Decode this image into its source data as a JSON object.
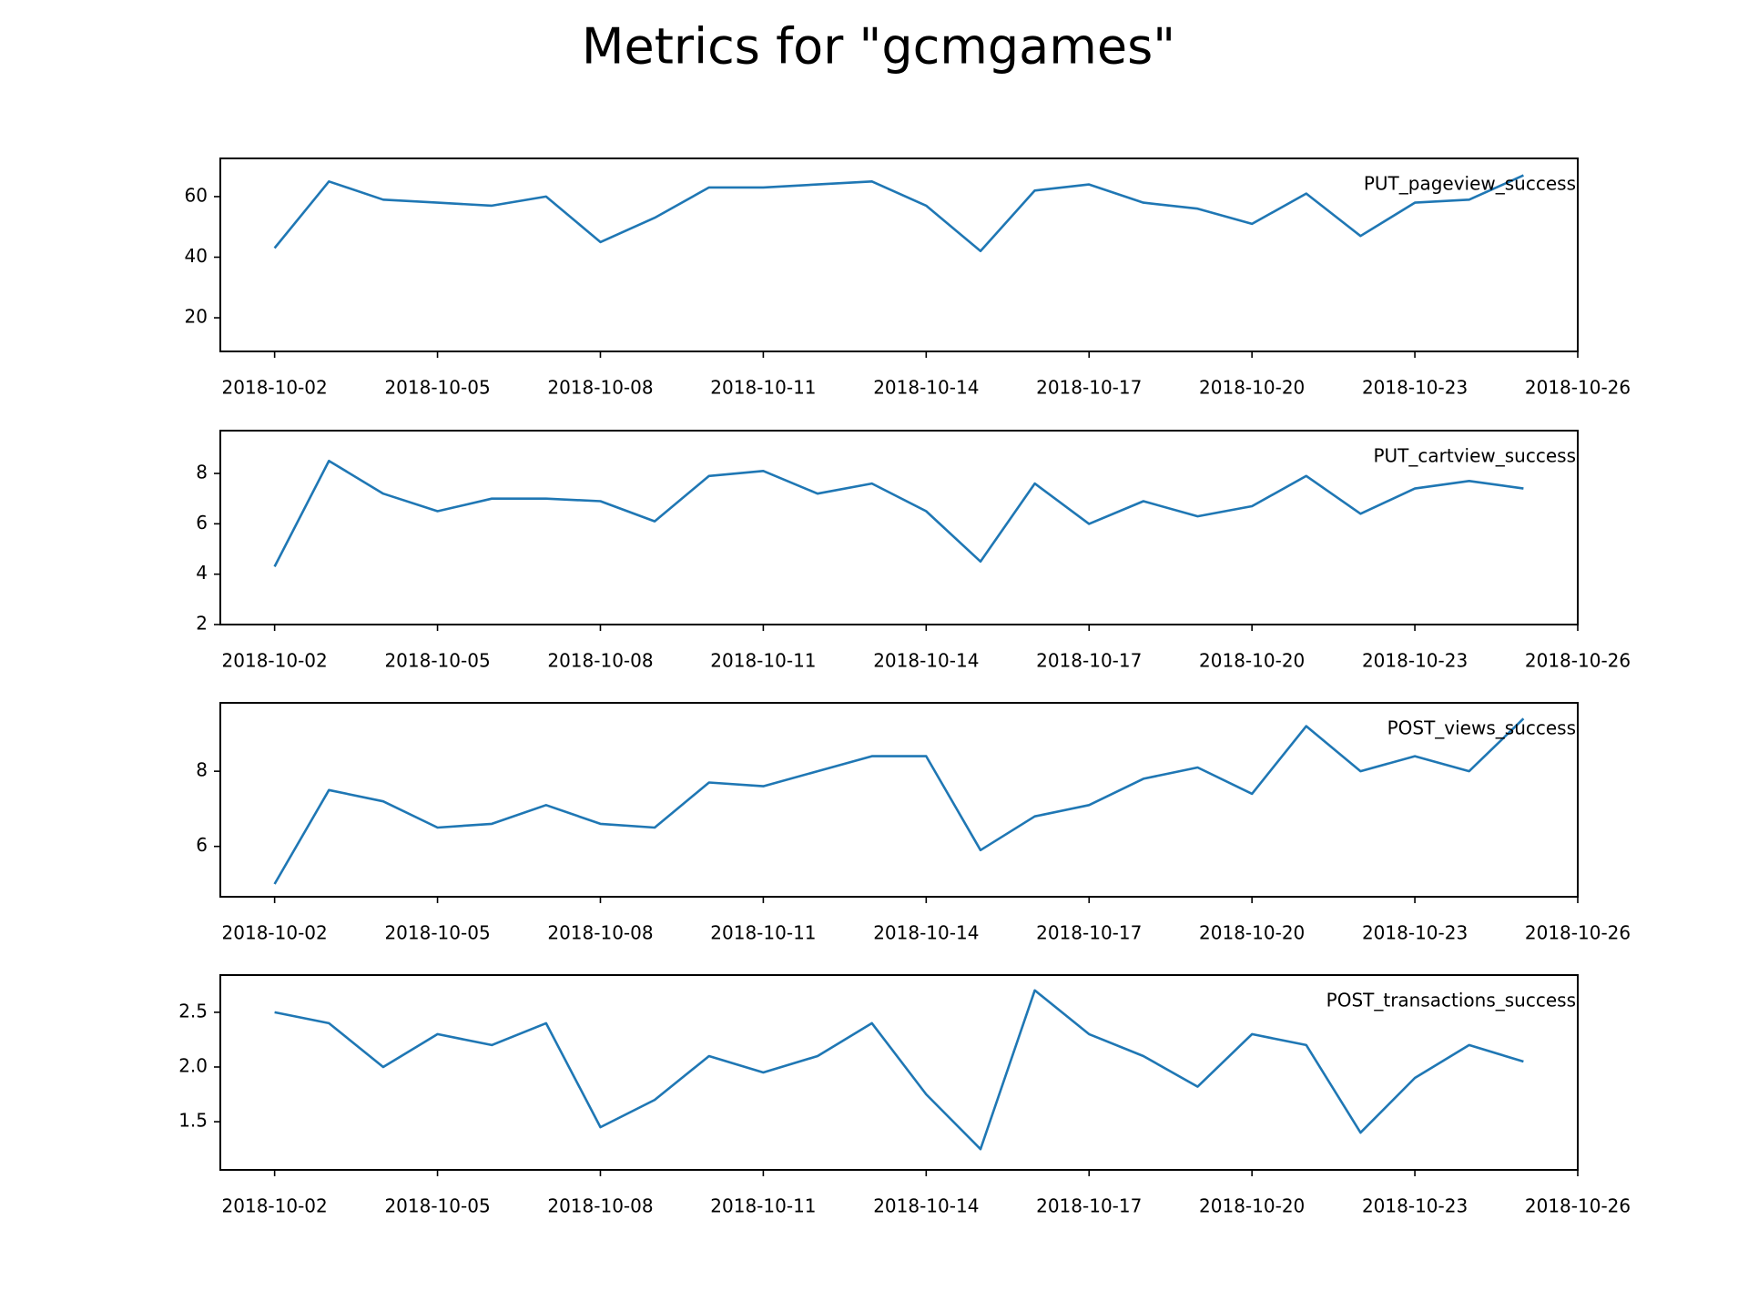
{
  "title": "Metrics for \"gcmgames\"",
  "chart_data": [
    {
      "type": "line",
      "x": [
        "2018-10-02",
        "2018-10-03",
        "2018-10-04",
        "2018-10-05",
        "2018-10-06",
        "2018-10-07",
        "2018-10-08",
        "2018-10-09",
        "2018-10-10",
        "2018-10-11",
        "2018-10-12",
        "2018-10-13",
        "2018-10-14",
        "2018-10-15",
        "2018-10-16",
        "2018-10-17",
        "2018-10-18",
        "2018-10-19",
        "2018-10-20",
        "2018-10-21",
        "2018-10-22",
        "2018-10-23",
        "2018-10-24",
        "2018-10-25"
      ],
      "series": [
        {
          "name": "PUT_pageview_success",
          "color": "#1f77b4",
          "values": [
            43,
            65,
            59,
            58,
            57,
            60,
            45,
            53,
            63,
            63,
            64,
            65,
            57,
            42,
            62,
            64,
            58,
            56,
            51,
            61,
            47,
            58,
            59,
            67
          ]
        }
      ],
      "xlim": [
        "2018-10-01",
        "2018-10-26"
      ],
      "xticks": [
        "2018-10-02",
        "2018-10-05",
        "2018-10-08",
        "2018-10-11",
        "2018-10-14",
        "2018-10-17",
        "2018-10-20",
        "2018-10-23",
        "2018-10-26"
      ],
      "ylim": [
        8.9,
        72.6
      ],
      "yticks": [
        20,
        40,
        60
      ]
    },
    {
      "type": "line",
      "x": [
        "2018-10-02",
        "2018-10-03",
        "2018-10-04",
        "2018-10-05",
        "2018-10-06",
        "2018-10-07",
        "2018-10-08",
        "2018-10-09",
        "2018-10-10",
        "2018-10-11",
        "2018-10-12",
        "2018-10-13",
        "2018-10-14",
        "2018-10-15",
        "2018-10-16",
        "2018-10-17",
        "2018-10-18",
        "2018-10-19",
        "2018-10-20",
        "2018-10-21",
        "2018-10-22",
        "2018-10-23",
        "2018-10-24",
        "2018-10-25"
      ],
      "series": [
        {
          "name": "PUT_cartview_success",
          "color": "#1f77b4",
          "values": [
            4.3,
            8.5,
            7.2,
            6.5,
            7.0,
            7.0,
            6.9,
            6.1,
            7.9,
            8.1,
            7.2,
            7.6,
            6.5,
            4.5,
            7.6,
            6.0,
            6.9,
            6.3,
            6.7,
            7.9,
            6.4,
            7.4,
            7.7,
            7.4
          ]
        }
      ],
      "xlim": [
        "2018-10-01",
        "2018-10-26"
      ],
      "xticks": [
        "2018-10-02",
        "2018-10-05",
        "2018-10-08",
        "2018-10-11",
        "2018-10-14",
        "2018-10-17",
        "2018-10-20",
        "2018-10-23",
        "2018-10-26"
      ],
      "ylim": [
        2,
        9.7
      ],
      "yticks": [
        2,
        4,
        6,
        8
      ]
    },
    {
      "type": "line",
      "x": [
        "2018-10-02",
        "2018-10-03",
        "2018-10-04",
        "2018-10-05",
        "2018-10-06",
        "2018-10-07",
        "2018-10-08",
        "2018-10-09",
        "2018-10-10",
        "2018-10-11",
        "2018-10-12",
        "2018-10-13",
        "2018-10-14",
        "2018-10-15",
        "2018-10-16",
        "2018-10-17",
        "2018-10-18",
        "2018-10-19",
        "2018-10-20",
        "2018-10-21",
        "2018-10-22",
        "2018-10-23",
        "2018-10-24",
        "2018-10-25"
      ],
      "series": [
        {
          "name": "POST_views_success",
          "color": "#1f77b4",
          "values": [
            5.0,
            7.5,
            7.2,
            6.5,
            6.6,
            7.1,
            6.6,
            6.5,
            7.7,
            7.6,
            8.0,
            8.4,
            8.4,
            5.9,
            6.8,
            7.1,
            7.8,
            8.1,
            7.4,
            9.2,
            8.0,
            8.4,
            8.0,
            9.4
          ]
        }
      ],
      "xlim": [
        "2018-10-01",
        "2018-10-26"
      ],
      "xticks": [
        "2018-10-02",
        "2018-10-05",
        "2018-10-08",
        "2018-10-11",
        "2018-10-14",
        "2018-10-17",
        "2018-10-20",
        "2018-10-23",
        "2018-10-26"
      ],
      "ylim": [
        4.66,
        9.82
      ],
      "yticks": [
        6,
        8
      ]
    },
    {
      "type": "line",
      "x": [
        "2018-10-02",
        "2018-10-03",
        "2018-10-04",
        "2018-10-05",
        "2018-10-06",
        "2018-10-07",
        "2018-10-08",
        "2018-10-09",
        "2018-10-10",
        "2018-10-11",
        "2018-10-12",
        "2018-10-13",
        "2018-10-14",
        "2018-10-15",
        "2018-10-16",
        "2018-10-17",
        "2018-10-18",
        "2018-10-19",
        "2018-10-20",
        "2018-10-21",
        "2018-10-22",
        "2018-10-23",
        "2018-10-24",
        "2018-10-25"
      ],
      "series": [
        {
          "name": "POST_transactions_success",
          "color": "#1f77b4",
          "values": [
            2.5,
            2.4,
            2.0,
            2.3,
            2.2,
            2.4,
            1.45,
            1.7,
            2.1,
            1.95,
            2.1,
            2.4,
            1.75,
            1.25,
            2.7,
            2.3,
            2.1,
            1.82,
            2.3,
            2.2,
            1.4,
            1.9,
            2.2,
            2.05
          ]
        }
      ],
      "xlim": [
        "2018-10-01",
        "2018-10-26"
      ],
      "xticks": [
        "2018-10-02",
        "2018-10-05",
        "2018-10-08",
        "2018-10-11",
        "2018-10-14",
        "2018-10-17",
        "2018-10-20",
        "2018-10-23",
        "2018-10-26"
      ],
      "ylim": [
        1.06,
        2.84
      ],
      "yticks": [
        1.5,
        {
          "value": 2.0,
          "label": "2.0"
        },
        2.5
      ]
    }
  ]
}
